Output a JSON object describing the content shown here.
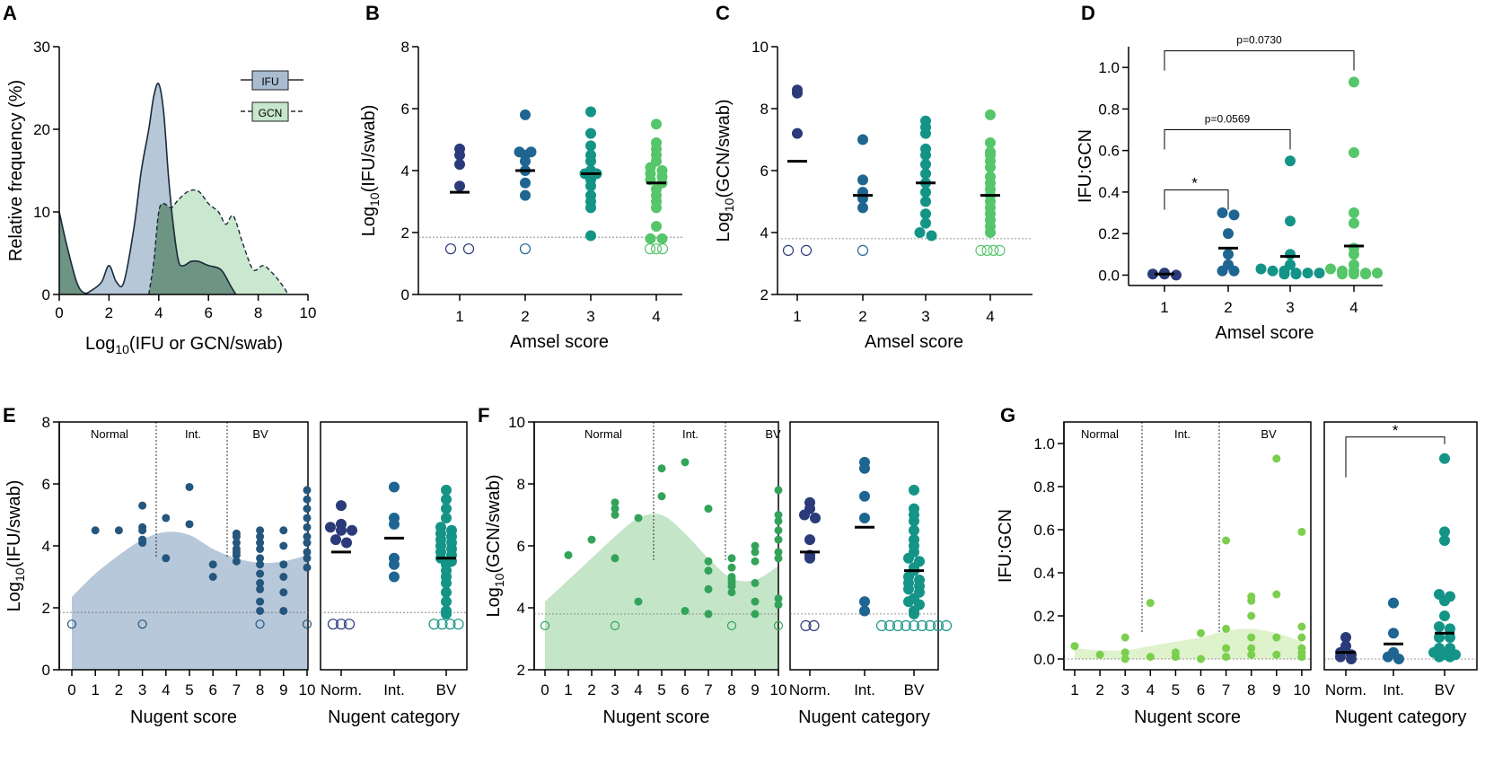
{
  "colors": {
    "ifu_fill": "#a9bdd0",
    "gcn_fill": "#c7e6cc",
    "overlap_fill": "#6e9484",
    "e_fill": "#b7c8da",
    "f_fill": "#c5e5c8",
    "g_fill": "#def2cc",
    "score1": "#2b3a78",
    "score2": "#1f6591",
    "score3": "#139487",
    "score4": "#55c66a",
    "nugent_e": "#24567e",
    "nugent_f": "#33a35a",
    "nugent_g": "#7bcf4c"
  },
  "chart_data": [
    {
      "panel": "A",
      "type": "area",
      "xlabel_pre": "Log",
      "xlabel_sub": "10",
      "xlabel_post": "(IFU or GCN/swab)",
      "ylabel": "Relative frequency (%)",
      "xlim": [
        0,
        10
      ],
      "ylim": [
        0,
        30
      ],
      "xticks": [
        "0",
        "2",
        "4",
        "6",
        "8",
        "10"
      ],
      "yticks": [
        "0",
        "10",
        "20",
        "30"
      ],
      "legend": [
        "IFU",
        "GCN"
      ],
      "series": [
        {
          "name": "IFU",
          "x": [
            0,
            0.3,
            0.7,
            1.0,
            1.3,
            1.7,
            2.0,
            2.3,
            2.6,
            3.0,
            3.3,
            3.6,
            3.8,
            4.0,
            4.2,
            4.4,
            4.6,
            4.8,
            5.0,
            5.3,
            5.6,
            6.0,
            6.5,
            6.9,
            7.1
          ],
          "y": [
            10,
            6,
            1.5,
            0.2,
            0.5,
            1.5,
            3.5,
            1.5,
            1.5,
            8,
            15,
            20,
            24,
            25.5,
            22,
            14,
            8,
            4,
            3.5,
            4,
            4,
            3.5,
            3,
            1,
            0
          ]
        },
        {
          "name": "GCN",
          "x": [
            3.6,
            3.8,
            4.0,
            4.2,
            4.5,
            4.8,
            5.2,
            5.6,
            6.0,
            6.4,
            6.7,
            7.0,
            7.4,
            7.8,
            8.2,
            8.6,
            9.0,
            9.2
          ],
          "y": [
            0,
            4,
            10,
            11,
            10.5,
            11.5,
            12.5,
            12.5,
            11,
            10,
            8.5,
            9.5,
            6,
            3,
            3.5,
            2.5,
            1,
            0
          ]
        }
      ]
    },
    {
      "panel": "B",
      "type": "scatter",
      "xlabel": "Amsel score",
      "ylabel_pre": "Log",
      "ylabel_sub": "10",
      "ylabel_post": "(IFU/swab)",
      "ylim": [
        0,
        8
      ],
      "yticks": [
        "0",
        "2",
        "4",
        "6",
        "8"
      ],
      "categories": [
        "1",
        "2",
        "3",
        "4"
      ],
      "lod": 1.85,
      "groups": [
        {
          "points": [
            4.5,
            4.7,
            4.2,
            3.5
          ],
          "median": 3.3,
          "below_lod": 2
        },
        {
          "points": [
            5.8,
            4.6,
            4.6,
            4.5,
            4.3,
            4.0,
            3.6,
            3.2
          ],
          "median": 4.0,
          "below_lod": 1
        },
        {
          "points": [
            5.9,
            5.2,
            4.8,
            4.5,
            4.3,
            4.0,
            3.9,
            3.9,
            3.7,
            3.5,
            3.2,
            3.0,
            2.8,
            1.9
          ],
          "median": 3.9,
          "below_lod": 0
        },
        {
          "points": [
            5.5,
            4.9,
            4.7,
            4.5,
            4.3,
            4.1,
            4.0,
            3.9,
            3.8,
            3.7,
            3.6,
            3.4,
            3.2,
            3.0,
            2.8,
            2.2,
            1.8,
            1.8
          ],
          "median": 3.6,
          "below_lod": 3
        }
      ]
    },
    {
      "panel": "C",
      "type": "scatter",
      "xlabel": "Amsel score",
      "ylabel_pre": "Log",
      "ylabel_sub": "10",
      "ylabel_post": "(GCN/swab)",
      "ylim": [
        2,
        10
      ],
      "yticks": [
        "2",
        "4",
        "6",
        "8",
        "10"
      ],
      "categories": [
        "1",
        "2",
        "3",
        "4"
      ],
      "lod": 3.8,
      "groups": [
        {
          "points": [
            8.5,
            8.6,
            7.2
          ],
          "median": 6.3,
          "below_lod": 2
        },
        {
          "points": [
            7.0,
            5.7,
            5.3,
            5.1,
            4.8
          ],
          "median": 5.2,
          "below_lod": 1
        },
        {
          "points": [
            7.6,
            7.4,
            7.2,
            6.7,
            6.5,
            6.2,
            5.9,
            5.6,
            5.3,
            5.0,
            4.6,
            4.3,
            4.0,
            3.9
          ],
          "median": 5.6,
          "below_lod": 0
        },
        {
          "points": [
            7.8,
            6.9,
            6.6,
            6.5,
            6.3,
            6.1,
            5.8,
            5.6,
            5.4,
            5.2,
            5.0,
            4.8,
            4.6,
            4.4,
            4.2,
            4.0
          ],
          "median": 5.2,
          "below_lod": 4
        }
      ]
    },
    {
      "panel": "D",
      "type": "scatter",
      "xlabel": "Amsel score",
      "ylabel": "IFU:GCN",
      "ylim": [
        -0.05,
        1.1
      ],
      "yticks": [
        "0.0",
        "0.2",
        "0.4",
        "0.6",
        "0.8",
        "1.0"
      ],
      "categories": [
        "1",
        "2",
        "3",
        "4"
      ],
      "groups": [
        {
          "points": [
            0.005,
            0.01,
            0.005,
            0.0
          ],
          "median": 0.005
        },
        {
          "points": [
            0.3,
            0.29,
            0.2,
            0.1,
            0.05,
            0.02,
            0.02
          ],
          "median": 0.13
        },
        {
          "points": [
            0.55,
            0.26,
            0.1,
            0.05,
            0.03,
            0.02,
            0.02,
            0.01,
            0.01,
            0.01,
            0.005,
            0.005
          ],
          "median": 0.09
        },
        {
          "points": [
            0.93,
            0.59,
            0.3,
            0.25,
            0.13,
            0.1,
            0.05,
            0.03,
            0.02,
            0.02,
            0.01,
            0.01,
            0.005,
            0.005,
            0.005
          ],
          "median": 0.14
        }
      ],
      "annotations": [
        {
          "from": "1",
          "to": "2",
          "label": "*",
          "y": 0.41
        },
        {
          "from": "1",
          "to": "3",
          "label": "p=0.0569",
          "y": 0.7
        },
        {
          "from": "1",
          "to": "4",
          "label": "p=0.0730",
          "y": 1.08
        }
      ]
    },
    {
      "panel": "E",
      "type": "scatter",
      "xlabel": "Nugent score",
      "xlabel2": "Nugent category",
      "ylabel_pre": "Log",
      "ylabel_sub": "10",
      "ylabel_post": "(IFU/swab)",
      "ylim": [
        0,
        8
      ],
      "yticks": [
        "0",
        "2",
        "4",
        "6",
        "8"
      ],
      "xticks": [
        "0",
        "1",
        "2",
        "3",
        "4",
        "5",
        "6",
        "7",
        "8",
        "9",
        "10"
      ],
      "regions": [
        "Normal",
        "Int.",
        "BV"
      ],
      "categories": [
        "Norm.",
        "Int.",
        "BV"
      ],
      "lod": 1.85,
      "density_x": [
        0,
        1,
        2,
        3,
        4,
        5,
        6,
        7,
        8,
        9,
        10
      ],
      "density_y": [
        2.35,
        3.1,
        3.7,
        4.2,
        4.45,
        4.35,
        3.9,
        3.6,
        3.45,
        3.5,
        3.7
      ],
      "by_score": [
        {
          "score": 0,
          "points": [],
          "below_lod": 1
        },
        {
          "score": 1,
          "points": [
            4.5
          ],
          "below_lod": 0
        },
        {
          "score": 2,
          "points": [
            4.5
          ],
          "below_lod": 0
        },
        {
          "score": 3,
          "points": [
            5.3,
            4.6,
            4.5,
            4.2,
            4.1
          ],
          "below_lod": 1
        },
        {
          "score": 4,
          "points": [
            4.9,
            3.6
          ],
          "below_lod": 0
        },
        {
          "score": 5,
          "points": [
            5.9,
            4.7
          ],
          "below_lod": 0
        },
        {
          "score": 6,
          "points": [
            3.4,
            3.0
          ],
          "below_lod": 0
        },
        {
          "score": 7,
          "points": [
            4.4,
            4.3,
            4.1,
            3.9,
            3.8,
            3.7,
            3.5
          ],
          "below_lod": 0
        },
        {
          "score": 8,
          "points": [
            4.5,
            4.3,
            4.1,
            3.9,
            3.6,
            3.4,
            3.1,
            2.8,
            2.6,
            2.2,
            1.9
          ],
          "below_lod": 1
        },
        {
          "score": 9,
          "points": [
            4.5,
            4.0,
            3.4,
            3.0,
            2.5,
            1.9
          ],
          "below_lod": 0
        },
        {
          "score": 10,
          "points": [
            5.8,
            5.5,
            5.2,
            4.9,
            4.6,
            4.3,
            4.1,
            3.8,
            3.6,
            3.3
          ],
          "below_lod": 1
        }
      ],
      "by_category": [
        {
          "points": [
            5.3,
            4.7,
            4.6,
            4.5,
            4.5,
            4.2,
            4.1
          ],
          "median": 3.8,
          "below_lod": 3
        },
        {
          "points": [
            5.9,
            4.9,
            4.7,
            3.6,
            3.4,
            3.0
          ],
          "median": 4.25,
          "below_lod": 0
        },
        {
          "points": [
            5.8,
            5.5,
            5.2,
            4.9,
            4.6,
            4.5,
            4.4,
            4.3,
            4.2,
            4.1,
            4.0,
            3.9,
            3.8,
            3.7,
            3.6,
            3.5,
            3.4,
            3.2,
            3.0,
            2.8,
            2.5,
            2.2,
            1.9,
            1.8
          ],
          "median": 3.6,
          "below_lod": 4
        }
      ]
    },
    {
      "panel": "F",
      "type": "scatter",
      "xlabel": "Nugent score",
      "xlabel2": "Nugent category",
      "ylabel_pre": "Log",
      "ylabel_sub": "10",
      "ylabel_post": "(GCN/swab)",
      "ylim": [
        2,
        10
      ],
      "yticks": [
        "2",
        "4",
        "6",
        "8",
        "10"
      ],
      "xticks": [
        "0",
        "1",
        "2",
        "3",
        "4",
        "5",
        "6",
        "7",
        "8",
        "9",
        "10"
      ],
      "regions": [
        "Normal",
        "Int.",
        "BV"
      ],
      "categories": [
        "Norm.",
        "Int.",
        "BV"
      ],
      "lod": 3.8,
      "density_x": [
        0,
        1,
        2,
        3,
        4,
        5,
        6,
        7,
        8,
        9,
        10
      ],
      "density_y": [
        4.2,
        4.9,
        5.6,
        6.3,
        6.9,
        7.0,
        6.4,
        5.6,
        4.95,
        4.9,
        5.35
      ],
      "by_score": [
        {
          "score": 0,
          "points": [],
          "below_lod": 1
        },
        {
          "score": 1,
          "points": [
            5.7
          ],
          "below_lod": 0
        },
        {
          "score": 2,
          "points": [
            6.2
          ],
          "below_lod": 0
        },
        {
          "score": 3,
          "points": [
            7.4,
            7.2,
            7.0,
            5.6
          ],
          "below_lod": 1
        },
        {
          "score": 4,
          "points": [
            6.9,
            4.2
          ],
          "below_lod": 0
        },
        {
          "score": 5,
          "points": [
            8.5,
            7.6
          ],
          "below_lod": 0
        },
        {
          "score": 6,
          "points": [
            8.7,
            3.9
          ],
          "below_lod": 0
        },
        {
          "score": 7,
          "points": [
            7.2,
            5.5,
            5.2,
            4.6,
            3.8
          ],
          "below_lod": 0
        },
        {
          "score": 8,
          "points": [
            5.6,
            5.3,
            5.0,
            4.9,
            4.8,
            4.7,
            4.5
          ],
          "below_lod": 1
        },
        {
          "score": 9,
          "points": [
            6.0,
            5.8,
            5.5,
            4.8,
            4.2,
            3.8
          ],
          "below_lod": 0
        },
        {
          "score": 10,
          "points": [
            7.8,
            7.0,
            6.8,
            6.5,
            6.2,
            5.8,
            5.6,
            4.3,
            4.1
          ],
          "below_lod": 1
        }
      ],
      "by_category": [
        {
          "points": [
            7.4,
            7.2,
            7.0,
            6.9,
            6.2,
            5.7,
            5.6
          ],
          "median": 5.8,
          "below_lod": 2
        },
        {
          "points": [
            8.5,
            8.7,
            7.6,
            6.9,
            4.2,
            3.9
          ],
          "median": 6.6,
          "below_lod": 0
        },
        {
          "points": [
            7.8,
            7.2,
            7.0,
            6.8,
            6.5,
            6.2,
            6.0,
            5.8,
            5.6,
            5.5,
            5.3,
            5.2,
            5.0,
            4.9,
            4.8,
            4.7,
            4.6,
            4.5,
            4.3,
            4.2,
            4.1,
            3.9,
            3.8
          ],
          "median": 5.2,
          "below_lod": 9
        }
      ]
    },
    {
      "panel": "G",
      "type": "scatter",
      "xlabel": "Nugent score",
      "xlabel2": "Nugent category",
      "ylabel": "IFU:GCN",
      "ylim": [
        -0.05,
        1.1
      ],
      "yticks": [
        "0.0",
        "0.2",
        "0.4",
        "0.6",
        "0.8",
        "1.0"
      ],
      "xticks": [
        "1",
        "2",
        "3",
        "4",
        "5",
        "6",
        "7",
        "8",
        "9",
        "10"
      ],
      "regions": [
        "Normal",
        "Int.",
        "BV"
      ],
      "categories": [
        "Norm.",
        "Int.",
        "BV"
      ],
      "density_x": [
        1,
        2,
        3,
        4,
        5,
        6,
        7,
        8,
        9,
        10
      ],
      "density_y": [
        0.05,
        0.04,
        0.04,
        0.06,
        0.08,
        0.1,
        0.13,
        0.14,
        0.12,
        0.08
      ],
      "by_score": [
        {
          "score": 1,
          "points": [
            0.06
          ]
        },
        {
          "score": 2,
          "points": [
            0.02
          ]
        },
        {
          "score": 3,
          "points": [
            0.1,
            0.03,
            0.0
          ]
        },
        {
          "score": 4,
          "points": [
            0.26,
            0.01
          ]
        },
        {
          "score": 5,
          "points": [
            0.03,
            0.01
          ]
        },
        {
          "score": 6,
          "points": [
            0.12,
            0.0
          ]
        },
        {
          "score": 7,
          "points": [
            0.55,
            0.14,
            0.05,
            0.01
          ]
        },
        {
          "score": 8,
          "points": [
            0.29,
            0.27,
            0.2,
            0.1,
            0.05,
            0.02
          ]
        },
        {
          "score": 9,
          "points": [
            0.93,
            0.3,
            0.1,
            0.02
          ]
        },
        {
          "score": 10,
          "points": [
            0.59,
            0.15,
            0.1,
            0.05,
            0.03,
            0.01
          ]
        }
      ],
      "by_category": [
        {
          "points": [
            0.1,
            0.06,
            0.03,
            0.02,
            0.01,
            0.0
          ],
          "median": 0.03
        },
        {
          "points": [
            0.26,
            0.12,
            0.03,
            0.01,
            0.0
          ],
          "median": 0.07
        },
        {
          "points": [
            0.93,
            0.59,
            0.55,
            0.3,
            0.29,
            0.27,
            0.2,
            0.15,
            0.14,
            0.1,
            0.1,
            0.05,
            0.05,
            0.03,
            0.02,
            0.02,
            0.01,
            0.01
          ],
          "median": 0.12
        }
      ],
      "annotations": [
        {
          "from": "Norm.",
          "to": "BV",
          "label": "*",
          "y": 1.03
        }
      ]
    }
  ]
}
